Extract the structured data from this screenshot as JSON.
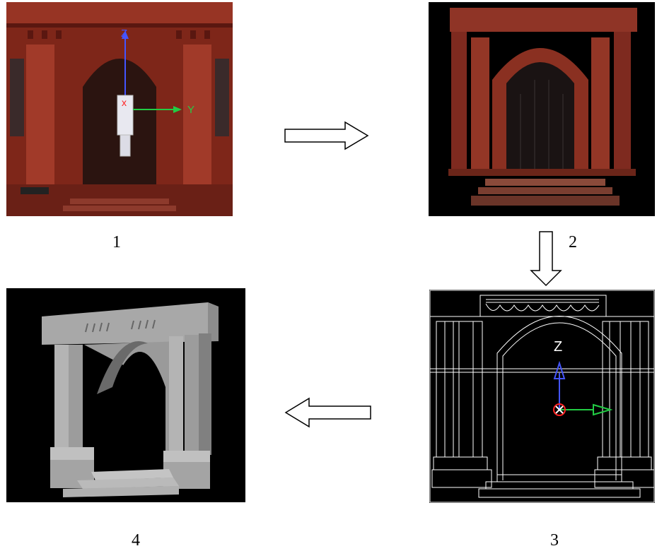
{
  "panels": [
    {
      "label": "1",
      "axis_labels": [
        "Z",
        "Y"
      ]
    },
    {
      "label": "",
      "axis_labels": []
    },
    {
      "label": "3",
      "axis_labels": [
        "Z"
      ]
    },
    {
      "label": "4",
      "axis_labels": []
    }
  ],
  "arrows": [
    {
      "direction": "right",
      "label": ""
    },
    {
      "direction": "down",
      "label": "2"
    },
    {
      "direction": "left",
      "label": ""
    }
  ],
  "colors": {
    "brick": "#8a2a1e",
    "axis_z": "#4455ff",
    "axis_y": "#22cc44",
    "axis_x": "#ff2222"
  }
}
